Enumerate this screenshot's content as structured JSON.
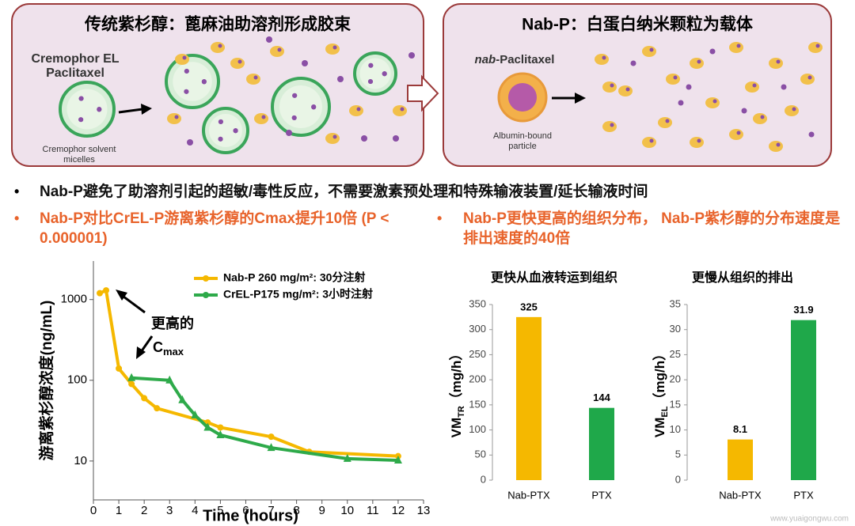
{
  "panels": [
    {
      "title": "传统紫杉醇：蓖麻油助溶剂形成胶束",
      "label": [
        "Cremophor EL",
        "Paclitaxel"
      ],
      "caption": [
        "Cremophor solvent",
        "micelles"
      ]
    },
    {
      "title": "Nab-P：白蛋白纳米颗粒为载体",
      "label_prefix": "nab",
      "label": "-Paclitaxel",
      "caption": [
        "Albumin-bound",
        "particle"
      ]
    }
  ],
  "bullets": [
    {
      "text": "Nab-P避免了助溶剂引起的超敏/毒性反应，不需要激素预处理和特殊输液装置/延长输液时间",
      "color": "#111111"
    },
    {
      "text": "Nab-P对比CrEL-P游离紫杉醇的Cmax提升10倍 (P < 0.000001)",
      "color": "#e8632b"
    },
    {
      "text": "Nab-P更快更高的组织分布， Nab-P紫杉醇的分布速度是排出速度的40倍",
      "color": "#e8632b"
    }
  ],
  "chart_data": [
    {
      "type": "line",
      "log_y": true,
      "xlabel": "Time (hours)",
      "ylabel": "游离紫杉醇浓度(ng/mL)",
      "annotations": [
        "更高的",
        "C",
        "max"
      ],
      "legend": "upper right",
      "xlim": [
        0,
        13
      ],
      "xticks": [
        0,
        1,
        2,
        3,
        4,
        5,
        6,
        7,
        8,
        9,
        10,
        11,
        12,
        13
      ],
      "ylim": [
        3.3,
        3000
      ],
      "yticks": [
        10,
        100,
        1000
      ],
      "series": [
        {
          "name": "Nab-P 260 mg/m²: 30分注射",
          "color": "#f5b800",
          "x": [
            0.25,
            0.5,
            1,
            1.5,
            2,
            2.5,
            4.5,
            5,
            7,
            8.5,
            12
          ],
          "values": [
            1200,
            1300,
            140,
            90,
            60,
            45,
            30,
            26,
            20,
            13,
            11.5
          ]
        },
        {
          "name": "CrEL-P175 mg/m²: 3小时注射",
          "color": "#2eaa4a",
          "x": [
            1.5,
            3,
            3.5,
            4,
            4.5,
            5,
            7,
            10,
            12
          ],
          "values": [
            107,
            100,
            57,
            37,
            26,
            21,
            14.6,
            10.7,
            10.2
          ]
        }
      ]
    },
    {
      "type": "bar",
      "title": "更快从血液转运到组织",
      "ylabel": [
        "VM",
        "TR",
        "（mg/h）"
      ],
      "categories": [
        "Nab-PTX",
        "PTX"
      ],
      "values": [
        325,
        144
      ],
      "colors": [
        "#f5b800",
        "#1fa84a"
      ],
      "ylim": [
        0,
        350
      ],
      "yticks": [
        0,
        50,
        100,
        150,
        200,
        250,
        300,
        350
      ]
    },
    {
      "type": "bar",
      "title": "更慢从组织的排出",
      "ylabel": [
        "VM",
        "EL",
        "（mg/h）"
      ],
      "categories": [
        "Nab-PTX",
        "PTX"
      ],
      "values": [
        8.1,
        31.9
      ],
      "colors": [
        "#f5b800",
        "#1fa84a"
      ],
      "ylim": [
        0,
        35
      ],
      "yticks": [
        0,
        5,
        10,
        15,
        20,
        25,
        30,
        35
      ]
    }
  ],
  "watermark": "www.yuaigongwu.com"
}
